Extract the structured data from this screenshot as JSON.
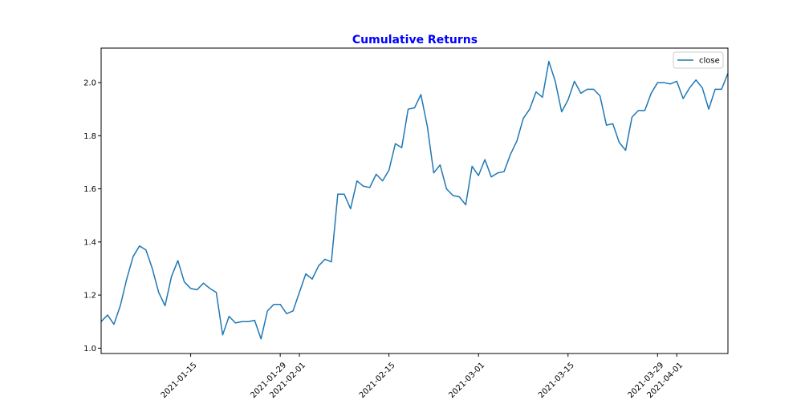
{
  "chart_data": {
    "type": "line",
    "title": "Cumulative Returns",
    "title_color": "#0000ff",
    "xlabel": "",
    "ylabel": "",
    "legend_position": "upper right",
    "grid": false,
    "ylim": [
      0.98,
      2.13
    ],
    "xlim": [
      "2021-01-01",
      "2021-04-09"
    ],
    "y_ticks": [
      1.0,
      1.2,
      1.4,
      1.6,
      1.8,
      2.0
    ],
    "y_tick_labels": [
      "1.0",
      "1.2",
      "1.4",
      "1.6",
      "1.8",
      "2.0"
    ],
    "x_ticks": [
      "2021-01-15",
      "2021-01-29",
      "2021-02-01",
      "2021-02-15",
      "2021-03-01",
      "2021-03-15",
      "2021-03-29",
      "2021-04-01"
    ],
    "x_tick_labels": [
      "2021-01-15",
      "2021-01-29",
      "2021-02-01",
      "2021-02-15",
      "2021-03-01",
      "2021-03-15",
      "2021-03-29",
      "2021-04-01"
    ],
    "series": [
      {
        "name": "close",
        "color": "#1f77b4",
        "x": [
          "2021-01-01",
          "2021-01-02",
          "2021-01-03",
          "2021-01-04",
          "2021-01-05",
          "2021-01-06",
          "2021-01-07",
          "2021-01-08",
          "2021-01-09",
          "2021-01-10",
          "2021-01-11",
          "2021-01-12",
          "2021-01-13",
          "2021-01-14",
          "2021-01-15",
          "2021-01-16",
          "2021-01-17",
          "2021-01-18",
          "2021-01-19",
          "2021-01-20",
          "2021-01-21",
          "2021-01-22",
          "2021-01-23",
          "2021-01-24",
          "2021-01-25",
          "2021-01-26",
          "2021-01-27",
          "2021-01-28",
          "2021-01-29",
          "2021-01-30",
          "2021-01-31",
          "2021-02-01",
          "2021-02-02",
          "2021-02-03",
          "2021-02-04",
          "2021-02-05",
          "2021-02-06",
          "2021-02-07",
          "2021-02-08",
          "2021-02-09",
          "2021-02-10",
          "2021-02-11",
          "2021-02-12",
          "2021-02-13",
          "2021-02-14",
          "2021-02-15",
          "2021-02-16",
          "2021-02-17",
          "2021-02-18",
          "2021-02-19",
          "2021-02-20",
          "2021-02-21",
          "2021-02-22",
          "2021-02-23",
          "2021-02-24",
          "2021-02-25",
          "2021-02-26",
          "2021-02-27",
          "2021-02-28",
          "2021-03-01",
          "2021-03-02",
          "2021-03-03",
          "2021-03-04",
          "2021-03-05",
          "2021-03-06",
          "2021-03-07",
          "2021-03-08",
          "2021-03-09",
          "2021-03-10",
          "2021-03-11",
          "2021-03-12",
          "2021-03-13",
          "2021-03-14",
          "2021-03-15",
          "2021-03-16",
          "2021-03-17",
          "2021-03-18",
          "2021-03-19",
          "2021-03-20",
          "2021-03-21",
          "2021-03-22",
          "2021-03-23",
          "2021-03-24",
          "2021-03-25",
          "2021-03-26",
          "2021-03-27",
          "2021-03-28",
          "2021-03-29",
          "2021-03-30",
          "2021-03-31",
          "2021-04-01",
          "2021-04-02",
          "2021-04-03",
          "2021-04-04",
          "2021-04-05",
          "2021-04-06",
          "2021-04-07",
          "2021-04-08",
          "2021-04-09"
        ],
        "y": [
          1.1,
          1.125,
          1.09,
          1.16,
          1.26,
          1.345,
          1.385,
          1.37,
          1.3,
          1.21,
          1.16,
          1.27,
          1.33,
          1.25,
          1.225,
          1.22,
          1.245,
          1.225,
          1.21,
          1.05,
          1.12,
          1.095,
          1.1,
          1.1,
          1.105,
          1.035,
          1.14,
          1.165,
          1.165,
          1.13,
          1.14,
          1.21,
          1.28,
          1.26,
          1.31,
          1.335,
          1.325,
          1.58,
          1.58,
          1.525,
          1.63,
          1.61,
          1.605,
          1.655,
          1.63,
          1.67,
          1.77,
          1.755,
          1.9,
          1.905,
          1.955,
          1.835,
          1.66,
          1.69,
          1.6,
          1.575,
          1.57,
          1.54,
          1.685,
          1.65,
          1.71,
          1.645,
          1.66,
          1.665,
          1.73,
          1.78,
          1.865,
          1.9,
          1.965,
          1.945,
          2.08,
          2.005,
          1.89,
          1.935,
          2.005,
          1.96,
          1.975,
          1.975,
          1.95,
          1.84,
          1.845,
          1.775,
          1.745,
          1.87,
          1.895,
          1.895,
          1.96,
          2.0,
          2.0,
          1.995,
          2.005,
          1.94,
          1.98,
          2.01,
          1.98,
          1.9,
          1.975,
          1.975,
          2.035
        ]
      }
    ]
  }
}
